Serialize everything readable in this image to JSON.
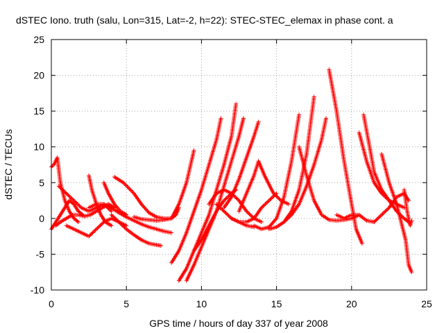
{
  "chart_data": {
    "type": "scatter",
    "title": "dSTEC Iono. truth (salu, Lon=315, Lat=-2, h=22): STEC-STEC_elemax in phase cont. a",
    "xlabel": "GPS time / hours of day 337 of year 2008",
    "ylabel": "dSTEC  / TECUs",
    "xlim": [
      0,
      25
    ],
    "ylim": [
      -10,
      25
    ],
    "x_ticks": [
      0,
      5,
      10,
      15,
      20,
      25
    ],
    "y_ticks": [
      -10,
      -5,
      0,
      5,
      10,
      15,
      20,
      25
    ],
    "grid": true,
    "marker": "plus",
    "series_color": "#ff0000",
    "series": [
      {
        "x": [
          0.0,
          0.2,
          0.4,
          0.6,
          0.9,
          1.2,
          1.5,
          1.8
        ],
        "y": [
          7.2,
          7.6,
          8.5,
          5.0,
          2.5,
          1.0,
          0.0,
          -0.5
        ]
      },
      {
        "x": [
          0.0,
          0.3,
          0.6,
          0.9,
          1.2,
          1.5,
          1.8,
          2.1
        ],
        "y": [
          -1.5,
          -0.5,
          0.5,
          1.5,
          2.5,
          2.0,
          1.0,
          0.5
        ]
      },
      {
        "x": [
          0.3,
          0.6,
          1.0,
          1.4,
          1.8,
          2.2,
          2.6,
          3.0,
          3.4,
          3.8,
          4.2
        ],
        "y": [
          -1.0,
          -0.5,
          0.0,
          0.5,
          0.5,
          0.3,
          0.5,
          1.0,
          1.5,
          2.0,
          1.5
        ]
      },
      {
        "x": [
          0.5,
          1.0,
          1.5,
          2.0,
          2.5,
          3.0,
          3.5,
          4.0
        ],
        "y": [
          4.5,
          3.5,
          2.5,
          1.5,
          1.0,
          1.5,
          2.0,
          1.0
        ]
      },
      {
        "x": [
          2.5,
          2.7,
          3.0,
          3.3,
          3.6,
          4.0
        ],
        "y": [
          6.0,
          4.0,
          2.0,
          0.5,
          -0.5,
          -1.0
        ]
      },
      {
        "x": [
          1.0,
          1.5,
          2.0,
          2.5,
          3.0,
          3.5,
          4.0,
          4.5,
          5.0
        ],
        "y": [
          -1.0,
          -1.5,
          -2.0,
          -2.5,
          -1.5,
          -0.5,
          0.0,
          -0.5,
          -1.0
        ]
      },
      {
        "x": [
          3.5,
          3.8,
          4.2,
          4.6,
          5.0
        ],
        "y": [
          5.0,
          3.5,
          2.0,
          1.0,
          0.5
        ]
      },
      {
        "x": [
          4.2,
          4.8,
          5.5,
          6.0,
          6.5,
          7.0,
          7.5,
          8.0,
          8.3,
          8.5
        ],
        "y": [
          5.8,
          5.0,
          3.5,
          2.0,
          0.8,
          0.2,
          0.0,
          0.0,
          0.5,
          1.5
        ]
      },
      {
        "x": [
          2.5,
          3.0,
          3.5,
          4.0,
          4.5,
          5.0,
          5.5,
          6.0,
          6.5,
          7.0,
          7.5,
          8.0
        ],
        "y": [
          1.5,
          2.0,
          2.0,
          1.5,
          0.8,
          0.2,
          -0.3,
          -0.8,
          -1.2,
          -1.5,
          -1.8,
          -2.0
        ]
      },
      {
        "x": [
          4.0,
          4.5,
          5.0,
          5.5,
          6.0,
          6.5,
          7.0,
          7.3
        ],
        "y": [
          0.5,
          -0.5,
          -1.5,
          -2.3,
          -3.0,
          -3.5,
          -3.7,
          -3.8
        ]
      },
      {
        "x": [
          5.5,
          6.0,
          6.5,
          7.0,
          7.5,
          8.0,
          8.5,
          9.0,
          9.5
        ],
        "y": [
          0.2,
          -0.1,
          -0.2,
          -0.3,
          -0.2,
          0.0,
          2.0,
          5.0,
          9.5
        ]
      },
      {
        "x": [
          8.0,
          8.5,
          9.0,
          9.5,
          10.0,
          10.5,
          11.0,
          11.3
        ],
        "y": [
          -6.2,
          -4.5,
          -2.0,
          1.0,
          4.0,
          7.5,
          11.0,
          14.0
        ]
      },
      {
        "x": [
          8.5,
          9.0,
          9.5,
          10.0,
          10.5,
          11.0,
          11.5,
          12.0,
          12.3
        ],
        "y": [
          -8.7,
          -7.0,
          -4.5,
          -2.0,
          0.5,
          4.0,
          7.5,
          11.5,
          16.0
        ]
      },
      {
        "x": [
          9.0,
          9.5,
          10.0,
          10.5,
          11.0,
          11.5,
          12.0,
          12.5,
          12.8
        ],
        "y": [
          -8.7,
          -6.5,
          -4.0,
          -1.5,
          1.0,
          4.5,
          8.0,
          11.5,
          14.0
        ]
      },
      {
        "x": [
          9.5,
          10.0,
          10.5,
          11.0,
          11.5,
          12.0,
          12.3
        ],
        "y": [
          -4.5,
          -3.0,
          -1.0,
          1.0,
          2.5,
          3.5,
          4.0
        ]
      },
      {
        "x": [
          11.5,
          12.0,
          12.5,
          13.0,
          13.5,
          13.8
        ],
        "y": [
          1.5,
          3.0,
          5.5,
          8.5,
          11.5,
          13.5
        ]
      },
      {
        "x": [
          10.5,
          11.0,
          11.5,
          12.0,
          12.5,
          13.0,
          13.5,
          14.0
        ],
        "y": [
          2.0,
          3.5,
          4.0,
          3.5,
          2.5,
          1.0,
          0.0,
          -0.5
        ]
      },
      {
        "x": [
          12.0,
          12.5,
          13.0,
          13.5,
          14.0,
          14.5,
          15.0
        ],
        "y": [
          0.0,
          -0.5,
          -0.5,
          0.0,
          1.5,
          2.5,
          3.5
        ]
      },
      {
        "x": [
          12.5,
          13.0,
          13.5,
          13.8,
          14.2,
          14.8,
          15.3,
          15.8
        ],
        "y": [
          1.0,
          3.5,
          6.0,
          8.0,
          6.0,
          3.5,
          2.5,
          2.0
        ]
      },
      {
        "x": [
          11.0,
          11.5,
          12.0,
          12.5,
          13.0,
          13.5
        ],
        "y": [
          2.0,
          1.0,
          0.0,
          -0.5,
          -1.0,
          -1.2
        ]
      },
      {
        "x": [
          13.5,
          14.0,
          14.5,
          15.0,
          15.5,
          16.0,
          16.5
        ],
        "y": [
          -1.0,
          -1.5,
          -1.2,
          0.0,
          3.0,
          8.0,
          14.5
        ]
      },
      {
        "x": [
          14.5,
          15.0,
          15.5,
          16.0,
          16.5,
          17.0,
          17.5
        ],
        "y": [
          -1.5,
          -1.2,
          -0.5,
          1.0,
          4.0,
          9.0,
          17.0
        ]
      },
      {
        "x": [
          15.5,
          16.0,
          16.5,
          17.0,
          17.5,
          18.0,
          18.3
        ],
        "y": [
          -0.5,
          0.5,
          2.0,
          4.5,
          7.5,
          11.0,
          14.0
        ]
      },
      {
        "x": [
          16.5,
          17.0,
          17.5,
          18.0,
          18.5,
          19.0,
          19.5,
          20.0,
          20.5
        ],
        "y": [
          10.0,
          6.0,
          2.5,
          0.5,
          -0.2,
          -0.3,
          -0.2,
          0.0,
          0.5
        ]
      },
      {
        "x": [
          18.5,
          19.0,
          19.5,
          20.0,
          20.3,
          20.7
        ],
        "y": [
          20.8,
          15.0,
          8.0,
          2.0,
          -1.5,
          -3.5
        ]
      },
      {
        "x": [
          19.0,
          19.5,
          20.0,
          20.5,
          21.0,
          21.5
        ],
        "y": [
          0.5,
          0.0,
          0.5,
          0.5,
          -0.3,
          -0.5
        ]
      },
      {
        "x": [
          20.8,
          21.2,
          21.5,
          22.0,
          22.5,
          23.0,
          23.5
        ],
        "y": [
          14.5,
          10.0,
          6.5,
          4.0,
          2.5,
          2.0,
          1.5
        ]
      },
      {
        "x": [
          20.5,
          21.0,
          21.5,
          22.0,
          22.5,
          23.0,
          23.5,
          23.8
        ],
        "y": [
          12.0,
          8.0,
          5.0,
          3.5,
          2.5,
          1.0,
          0.0,
          -0.5
        ]
      },
      {
        "x": [
          21.5,
          22.0,
          22.5,
          23.0,
          23.5,
          23.8
        ],
        "y": [
          -0.5,
          0.5,
          1.5,
          3.0,
          3.5,
          2.5
        ]
      },
      {
        "x": [
          22.0,
          22.5,
          23.0,
          23.3,
          23.6,
          23.8,
          24.0
        ],
        "y": [
          9.0,
          5.0,
          2.0,
          -0.5,
          -3.0,
          -6.5,
          -7.5
        ]
      },
      {
        "x": [
          23.5,
          23.7,
          23.9,
          24.0
        ],
        "y": [
          4.0,
          1.0,
          -1.0,
          -0.3
        ]
      }
    ]
  }
}
